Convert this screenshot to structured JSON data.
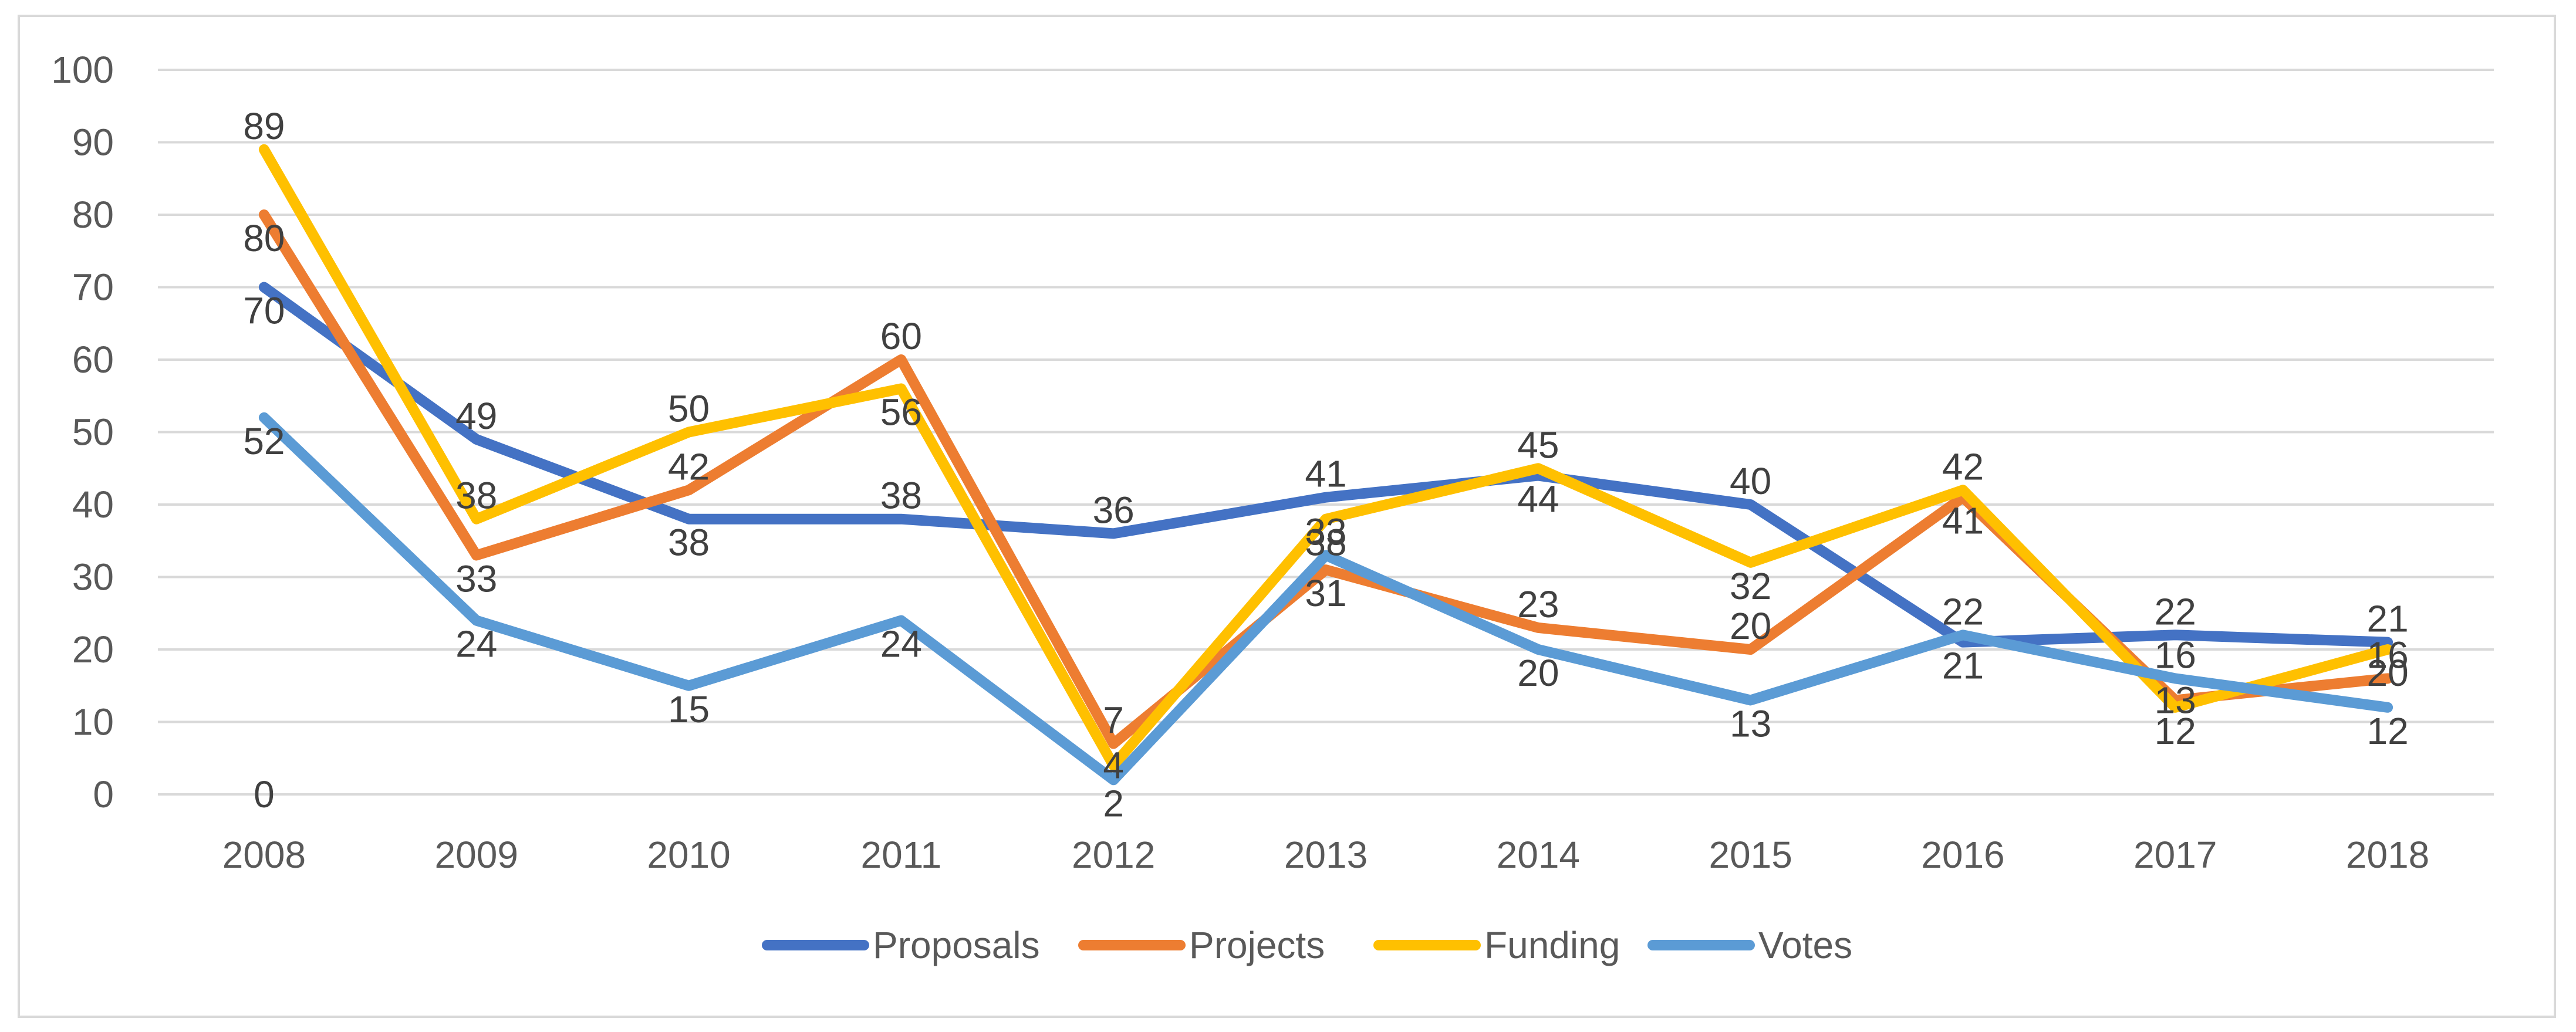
{
  "chart_data": {
    "type": "line",
    "title": "",
    "xlabel": "",
    "ylabel": "",
    "categories": [
      "2008",
      "2009",
      "2010",
      "2011",
      "2012",
      "2013",
      "2014",
      "2015",
      "2016",
      "2017",
      "2018"
    ],
    "ylim": [
      0,
      100
    ],
    "yticks": [
      0,
      10,
      20,
      30,
      40,
      50,
      60,
      70,
      80,
      90,
      100
    ],
    "grid": true,
    "legend_position": "bottom",
    "series": [
      {
        "name": "Proposals",
        "color": "#4472c4",
        "values": [
          70,
          49,
          38,
          38,
          36,
          41,
          44,
          40,
          21,
          22,
          21
        ]
      },
      {
        "name": "Projects",
        "color": "#ed7d31",
        "values": [
          80,
          33,
          42,
          60,
          7,
          31,
          23,
          20,
          41,
          13,
          16
        ]
      },
      {
        "name": "Funding",
        "color": "#ffc000",
        "values": [
          89,
          38,
          50,
          56,
          4,
          38,
          45,
          32,
          42,
          12,
          20
        ]
      },
      {
        "name": "Votes",
        "color": "#5b9bd5",
        "values": [
          52,
          24,
          15,
          24,
          2,
          33,
          20,
          13,
          22,
          16,
          12
        ]
      }
    ],
    "annotations": [
      "0"
    ]
  }
}
